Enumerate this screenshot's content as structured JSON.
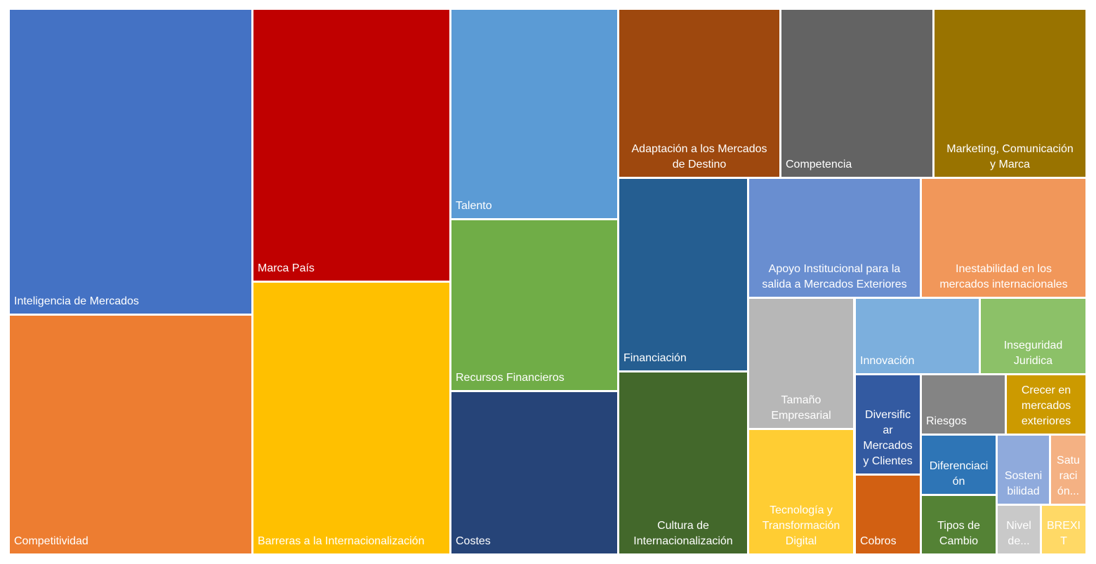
{
  "chart_data": {
    "type": "treemap",
    "title": "",
    "nodes": [
      {
        "label": "Inteligencia de Mercados",
        "color": "#4472C4"
      },
      {
        "label": "Competitividad",
        "color": "#ED7D31"
      },
      {
        "label": "Marca País",
        "color": "#C00000"
      },
      {
        "label": "Barreras a la Internacionalización",
        "color": "#FFC000"
      },
      {
        "label": "Talento",
        "color": "#5B9BD5"
      },
      {
        "label": "Recursos Financieros",
        "color": "#70AD47"
      },
      {
        "label": "Costes",
        "color": "#264478"
      },
      {
        "label": "Adaptación a los Mercados\nde Destino",
        "color": "#9E480E"
      },
      {
        "label": "Competencia",
        "color": "#636363"
      },
      {
        "label": "Marketing, Comunicación\ny Marca",
        "color": "#997300"
      },
      {
        "label": "Financiación",
        "color": "#255E91"
      },
      {
        "label": "Cultura de\nInternacionalización",
        "color": "#43682B"
      },
      {
        "label": "Apoyo Institucional para la\nsalida a Mercados Exteriores",
        "color": "#698ED0"
      },
      {
        "label": "Inestabilidad en los\nmercados internacionales",
        "color": "#F1975A"
      },
      {
        "label": "Tamaño\nEmpresarial",
        "color": "#B7B7B7"
      },
      {
        "label": "Tecnología y\nTransformación\nDigital",
        "color": "#FFCD33"
      },
      {
        "label": "Innovación",
        "color": "#7CAFDD"
      },
      {
        "label": "Inseguridad\nJuridica",
        "color": "#8CC168"
      },
      {
        "label": "Diversific\nar\nMercados\ny Clientes",
        "color": "#335AA1"
      },
      {
        "label": "Cobros",
        "color": "#D26012"
      },
      {
        "label": "Riesgos",
        "color": "#848484"
      },
      {
        "label": "Crecer en\nmercados\nexteriores",
        "color": "#CC9A00"
      },
      {
        "label": "Diferenciaci\nón",
        "color": "#2E75B6"
      },
      {
        "label": "Tipos de\nCambio",
        "color": "#548235"
      },
      {
        "label": "Sosteni\nbilidad",
        "color": "#8FAADC"
      },
      {
        "label": "Satu\nraci\nón...",
        "color": "#F4B183"
      },
      {
        "label": "Nivel\nde...",
        "color": "#C9C9C9"
      },
      {
        "label": "BREXI\nT",
        "color": "#FFD966"
      }
    ]
  }
}
